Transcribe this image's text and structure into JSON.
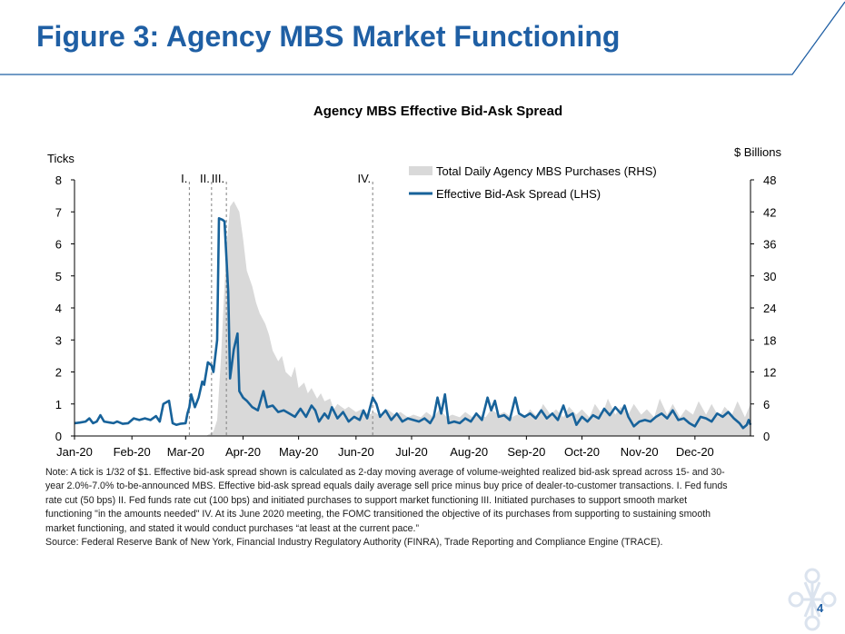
{
  "slide": {
    "title": "Figure 3: Agency MBS Market Functioning",
    "page_number": "4",
    "accent_color": "#1f5fa4"
  },
  "chart_data": {
    "type": "line",
    "title": "Agency MBS Effective Bid-Ask Spread",
    "y_left_label": "Ticks",
    "y_right_label": "$ Billions",
    "y_left_ticks": [
      "0",
      "1",
      "2",
      "3",
      "4",
      "5",
      "6",
      "7",
      "8"
    ],
    "y_right_ticks": [
      "0",
      "6",
      "12",
      "18",
      "24",
      "30",
      "36",
      "42",
      "48"
    ],
    "ylim_left": [
      0,
      8
    ],
    "ylim_right": [
      0,
      48
    ],
    "x_axis": {
      "start": "2020-01-01",
      "end": "2020-12-31",
      "tick_labels": [
        "Jan-20",
        "Feb-20",
        "Mar-20",
        "Apr-20",
        "May-20",
        "Jun-20",
        "Jul-20",
        "Aug-20",
        "Sep-20",
        "Oct-20",
        "Nov-20",
        "Dec-20"
      ],
      "tick_dates": [
        "2020-01-01",
        "2020-02-01",
        "2020-03-01",
        "2020-04-01",
        "2020-05-01",
        "2020-06-01",
        "2020-07-01",
        "2020-08-01",
        "2020-09-01",
        "2020-10-01",
        "2020-11-01",
        "2020-12-01"
      ]
    },
    "legend_position": "top-right",
    "grid": false,
    "events": [
      {
        "label": "I.",
        "date": "2020-03-03"
      },
      {
        "label": "II.",
        "date": "2020-03-15"
      },
      {
        "label": "III.",
        "date": "2020-03-23"
      },
      {
        "label": "IV.",
        "date": "2020-06-10"
      }
    ],
    "series": [
      {
        "name": "Total Daily Agency MBS Purchases (RHS)",
        "axis": "right",
        "style": "area",
        "color": "#d9d9d9",
        "points": [
          [
            "2020-01-01",
            0
          ],
          [
            "2020-03-12",
            0
          ],
          [
            "2020-03-16",
            0.8
          ],
          [
            "2020-03-18",
            3
          ],
          [
            "2020-03-20",
            14
          ],
          [
            "2020-03-23",
            35
          ],
          [
            "2020-03-25",
            43
          ],
          [
            "2020-03-27",
            44
          ],
          [
            "2020-03-30",
            42
          ],
          [
            "2020-04-01",
            37
          ],
          [
            "2020-04-03",
            31
          ],
          [
            "2020-04-06",
            28
          ],
          [
            "2020-04-08",
            25
          ],
          [
            "2020-04-10",
            23
          ],
          [
            "2020-04-13",
            21
          ],
          [
            "2020-04-15",
            19
          ],
          [
            "2020-04-17",
            16
          ],
          [
            "2020-04-20",
            14
          ],
          [
            "2020-04-22",
            15
          ],
          [
            "2020-04-24",
            12
          ],
          [
            "2020-04-27",
            11
          ],
          [
            "2020-04-29",
            13
          ],
          [
            "2020-05-01",
            9
          ],
          [
            "2020-05-04",
            10
          ],
          [
            "2020-05-06",
            8
          ],
          [
            "2020-05-08",
            9
          ],
          [
            "2020-05-11",
            7
          ],
          [
            "2020-05-13",
            8
          ],
          [
            "2020-05-15",
            6.5
          ],
          [
            "2020-05-18",
            7
          ],
          [
            "2020-05-20",
            5
          ],
          [
            "2020-05-22",
            6
          ],
          [
            "2020-05-26",
            5
          ],
          [
            "2020-05-28",
            5.5
          ],
          [
            "2020-06-01",
            4.5
          ],
          [
            "2020-06-04",
            5
          ],
          [
            "2020-06-08",
            4
          ],
          [
            "2020-06-11",
            4.5
          ],
          [
            "2020-06-15",
            3.5
          ],
          [
            "2020-06-18",
            5
          ],
          [
            "2020-06-22",
            4
          ],
          [
            "2020-06-25",
            4.5
          ],
          [
            "2020-06-29",
            3.5
          ],
          [
            "2020-07-02",
            4
          ],
          [
            "2020-07-06",
            3.5
          ],
          [
            "2020-07-09",
            4.5
          ],
          [
            "2020-07-13",
            3.5
          ],
          [
            "2020-07-16",
            5
          ],
          [
            "2020-07-20",
            3.5
          ],
          [
            "2020-07-23",
            4
          ],
          [
            "2020-07-27",
            3.5
          ],
          [
            "2020-07-30",
            4.5
          ],
          [
            "2020-08-03",
            3.5
          ],
          [
            "2020-08-06",
            4
          ],
          [
            "2020-08-10",
            3.5
          ],
          [
            "2020-08-13",
            5
          ],
          [
            "2020-08-17",
            4
          ],
          [
            "2020-08-20",
            4.5
          ],
          [
            "2020-08-24",
            3.5
          ],
          [
            "2020-08-27",
            4
          ],
          [
            "2020-08-31",
            3.5
          ],
          [
            "2020-09-03",
            5
          ],
          [
            "2020-09-07",
            3.5
          ],
          [
            "2020-09-10",
            6
          ],
          [
            "2020-09-14",
            4
          ],
          [
            "2020-09-17",
            5
          ],
          [
            "2020-09-21",
            3.5
          ],
          [
            "2020-09-24",
            5.5
          ],
          [
            "2020-09-28",
            4
          ],
          [
            "2020-10-01",
            5
          ],
          [
            "2020-10-05",
            3.5
          ],
          [
            "2020-10-08",
            6
          ],
          [
            "2020-10-12",
            4
          ],
          [
            "2020-10-15",
            7
          ],
          [
            "2020-10-19",
            4
          ],
          [
            "2020-10-22",
            5.5
          ],
          [
            "2020-10-26",
            4
          ],
          [
            "2020-10-29",
            6
          ],
          [
            "2020-11-02",
            4
          ],
          [
            "2020-11-05",
            5
          ],
          [
            "2020-11-09",
            3.5
          ],
          [
            "2020-11-12",
            7
          ],
          [
            "2020-11-16",
            4
          ],
          [
            "2020-11-19",
            6
          ],
          [
            "2020-11-23",
            3.5
          ],
          [
            "2020-11-26",
            5
          ],
          [
            "2020-11-30",
            4
          ],
          [
            "2020-12-03",
            6.5
          ],
          [
            "2020-12-07",
            4
          ],
          [
            "2020-12-10",
            6
          ],
          [
            "2020-12-14",
            3.5
          ],
          [
            "2020-12-17",
            5.5
          ],
          [
            "2020-12-21",
            4
          ],
          [
            "2020-12-24",
            6.5
          ],
          [
            "2020-12-28",
            3.5
          ],
          [
            "2020-12-31",
            6
          ]
        ]
      },
      {
        "name": "Effective Bid-Ask Spread (LHS)",
        "axis": "left",
        "style": "line",
        "color": "#17629a",
        "points": [
          [
            "2020-01-01",
            0.4
          ],
          [
            "2020-01-04",
            0.42
          ],
          [
            "2020-01-07",
            0.45
          ],
          [
            "2020-01-09",
            0.55
          ],
          [
            "2020-01-11",
            0.4
          ],
          [
            "2020-01-13",
            0.45
          ],
          [
            "2020-01-15",
            0.65
          ],
          [
            "2020-01-17",
            0.45
          ],
          [
            "2020-01-20",
            0.42
          ],
          [
            "2020-01-22",
            0.4
          ],
          [
            "2020-01-24",
            0.45
          ],
          [
            "2020-01-27",
            0.38
          ],
          [
            "2020-01-30",
            0.4
          ],
          [
            "2020-02-02",
            0.55
          ],
          [
            "2020-02-05",
            0.5
          ],
          [
            "2020-02-08",
            0.55
          ],
          [
            "2020-02-11",
            0.5
          ],
          [
            "2020-02-14",
            0.62
          ],
          [
            "2020-02-16",
            0.45
          ],
          [
            "2020-02-18",
            1.0
          ],
          [
            "2020-02-21",
            1.1
          ],
          [
            "2020-02-23",
            0.4
          ],
          [
            "2020-02-25",
            0.35
          ],
          [
            "2020-02-27",
            0.38
          ],
          [
            "2020-03-01",
            0.4
          ],
          [
            "2020-03-02",
            0.7
          ],
          [
            "2020-03-03",
            0.9
          ],
          [
            "2020-03-04",
            1.3
          ],
          [
            "2020-03-06",
            0.9
          ],
          [
            "2020-03-08",
            1.2
          ],
          [
            "2020-03-10",
            1.7
          ],
          [
            "2020-03-11",
            1.6
          ],
          [
            "2020-03-13",
            2.3
          ],
          [
            "2020-03-15",
            2.2
          ],
          [
            "2020-03-16",
            2.0
          ],
          [
            "2020-03-18",
            3.0
          ],
          [
            "2020-03-19",
            6.8
          ],
          [
            "2020-03-21",
            6.75
          ],
          [
            "2020-03-22",
            6.7
          ],
          [
            "2020-03-24",
            4.5
          ],
          [
            "2020-03-25",
            1.8
          ],
          [
            "2020-03-27",
            2.7
          ],
          [
            "2020-03-29",
            3.2
          ],
          [
            "2020-03-30",
            1.4
          ],
          [
            "2020-04-01",
            1.2
          ],
          [
            "2020-04-03",
            1.1
          ],
          [
            "2020-04-06",
            0.9
          ],
          [
            "2020-04-09",
            0.8
          ],
          [
            "2020-04-12",
            1.4
          ],
          [
            "2020-04-14",
            0.9
          ],
          [
            "2020-04-17",
            0.95
          ],
          [
            "2020-04-20",
            0.75
          ],
          [
            "2020-04-23",
            0.8
          ],
          [
            "2020-04-26",
            0.7
          ],
          [
            "2020-04-29",
            0.6
          ],
          [
            "2020-05-02",
            0.85
          ],
          [
            "2020-05-05",
            0.6
          ],
          [
            "2020-05-08",
            0.95
          ],
          [
            "2020-05-10",
            0.8
          ],
          [
            "2020-05-12",
            0.45
          ],
          [
            "2020-05-15",
            0.7
          ],
          [
            "2020-05-17",
            0.55
          ],
          [
            "2020-05-19",
            0.9
          ],
          [
            "2020-05-22",
            0.55
          ],
          [
            "2020-05-25",
            0.75
          ],
          [
            "2020-05-28",
            0.45
          ],
          [
            "2020-05-31",
            0.6
          ],
          [
            "2020-06-03",
            0.5
          ],
          [
            "2020-06-05",
            0.8
          ],
          [
            "2020-06-07",
            0.55
          ],
          [
            "2020-06-10",
            1.2
          ],
          [
            "2020-06-12",
            1.0
          ],
          [
            "2020-06-14",
            0.6
          ],
          [
            "2020-06-17",
            0.8
          ],
          [
            "2020-06-20",
            0.5
          ],
          [
            "2020-06-23",
            0.7
          ],
          [
            "2020-06-26",
            0.45
          ],
          [
            "2020-06-29",
            0.55
          ],
          [
            "2020-07-02",
            0.5
          ],
          [
            "2020-07-05",
            0.45
          ],
          [
            "2020-07-08",
            0.55
          ],
          [
            "2020-07-11",
            0.4
          ],
          [
            "2020-07-13",
            0.6
          ],
          [
            "2020-07-15",
            1.2
          ],
          [
            "2020-07-17",
            0.7
          ],
          [
            "2020-07-19",
            1.3
          ],
          [
            "2020-07-21",
            0.4
          ],
          [
            "2020-07-24",
            0.45
          ],
          [
            "2020-07-27",
            0.4
          ],
          [
            "2020-07-30",
            0.55
          ],
          [
            "2020-08-02",
            0.45
          ],
          [
            "2020-08-05",
            0.7
          ],
          [
            "2020-08-08",
            0.5
          ],
          [
            "2020-08-11",
            1.2
          ],
          [
            "2020-08-13",
            0.8
          ],
          [
            "2020-08-15",
            1.1
          ],
          [
            "2020-08-17",
            0.6
          ],
          [
            "2020-08-20",
            0.65
          ],
          [
            "2020-08-23",
            0.5
          ],
          [
            "2020-08-26",
            1.2
          ],
          [
            "2020-08-28",
            0.7
          ],
          [
            "2020-08-31",
            0.6
          ],
          [
            "2020-09-03",
            0.7
          ],
          [
            "2020-09-06",
            0.55
          ],
          [
            "2020-09-09",
            0.8
          ],
          [
            "2020-09-12",
            0.55
          ],
          [
            "2020-09-15",
            0.7
          ],
          [
            "2020-09-18",
            0.5
          ],
          [
            "2020-09-21",
            0.95
          ],
          [
            "2020-09-23",
            0.6
          ],
          [
            "2020-09-26",
            0.7
          ],
          [
            "2020-09-28",
            0.35
          ],
          [
            "2020-10-01",
            0.6
          ],
          [
            "2020-10-04",
            0.45
          ],
          [
            "2020-10-07",
            0.65
          ],
          [
            "2020-10-10",
            0.55
          ],
          [
            "2020-10-13",
            0.85
          ],
          [
            "2020-10-16",
            0.65
          ],
          [
            "2020-10-19",
            0.9
          ],
          [
            "2020-10-22",
            0.7
          ],
          [
            "2020-10-24",
            0.95
          ],
          [
            "2020-10-26",
            0.6
          ],
          [
            "2020-10-29",
            0.3
          ],
          [
            "2020-11-01",
            0.45
          ],
          [
            "2020-11-04",
            0.5
          ],
          [
            "2020-11-07",
            0.45
          ],
          [
            "2020-11-10",
            0.6
          ],
          [
            "2020-11-13",
            0.7
          ],
          [
            "2020-11-16",
            0.55
          ],
          [
            "2020-11-19",
            0.8
          ],
          [
            "2020-11-22",
            0.5
          ],
          [
            "2020-11-25",
            0.55
          ],
          [
            "2020-11-28",
            0.4
          ],
          [
            "2020-12-01",
            0.3
          ],
          [
            "2020-12-04",
            0.6
          ],
          [
            "2020-12-07",
            0.55
          ],
          [
            "2020-12-10",
            0.45
          ],
          [
            "2020-12-13",
            0.7
          ],
          [
            "2020-12-16",
            0.6
          ],
          [
            "2020-12-19",
            0.75
          ],
          [
            "2020-12-22",
            0.55
          ],
          [
            "2020-12-25",
            0.4
          ],
          [
            "2020-12-27",
            0.25
          ],
          [
            "2020-12-29",
            0.35
          ],
          [
            "2020-12-30",
            0.5
          ],
          [
            "2020-12-31",
            0.35
          ]
        ]
      }
    ]
  },
  "notes": {
    "note": "Note: A tick is 1/32 of $1. Effective bid-ask spread shown is calculated as 2-day moving average of volume-weighted realized bid-ask spread across 15- and 30-year 2.0%-7.0% to-be-announced MBS. Effective bid-ask spread equals daily average sell price minus buy price of dealer-to-customer transactions. I. Fed funds rate cut (50 bps) II. Fed funds rate cut (100 bps) and initiated purchases to support market functioning III. Initiated purchases to support smooth market functioning \"in the amounts needed\" IV. At its June 2020 meeting, the FOMC transitioned the objective of its purchases from supporting to sustaining smooth market functioning, and stated it would conduct purchases “at least at the current pace.”",
    "source": "Source: Federal Reserve Bank of New York, Financial Industry Regulatory Authority (FINRA), Trade Reporting and Compliance Engine (TRACE)."
  }
}
